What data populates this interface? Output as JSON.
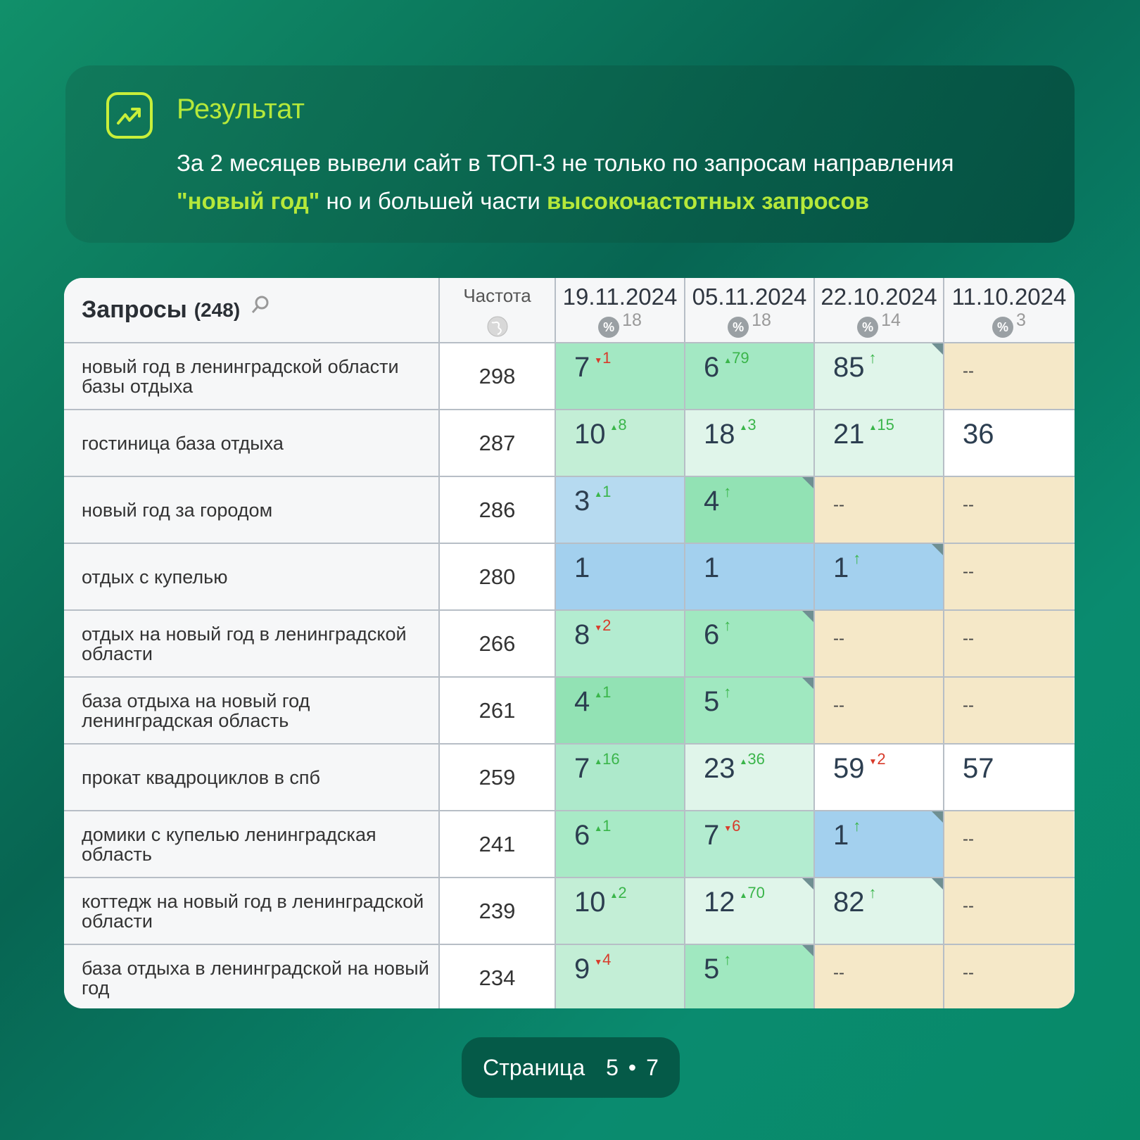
{
  "result": {
    "title": "Результат",
    "line1": "За 2 месяцев вывели сайт в ТОП-3 не только по запросам направления",
    "hl1": "\"новый год\"",
    "mid": " но и большей части ",
    "hl2": "высокочастотных запросов",
    "icon": "trending-up-icon"
  },
  "table": {
    "header": {
      "queries": "Запросы",
      "count": "(248)",
      "frequency": "Частота",
      "dates": [
        {
          "date": "19.11.2024",
          "pct": "%",
          "n": "18"
        },
        {
          "date": "05.11.2024",
          "pct": "%",
          "n": "18"
        },
        {
          "date": "22.10.2024",
          "pct": "%",
          "n": "14"
        },
        {
          "date": "11.10.2024",
          "pct": "%",
          "n": "3"
        }
      ]
    },
    "rows": [
      {
        "q": "новый год в ленинградской области базы отдыха",
        "f": "298",
        "cells": [
          {
            "v": "7",
            "d": "1",
            "t": "down",
            "bg": "#a3e8c3"
          },
          {
            "v": "6",
            "d": "79",
            "t": "up",
            "bg": "#a3e8c3"
          },
          {
            "v": "85",
            "d": "↑",
            "t": "new",
            "bg": "#e0f5ea",
            "corner": true
          },
          {
            "v": "--",
            "bg": "#f5e8c8"
          }
        ]
      },
      {
        "q": "гостиница база отдыха",
        "f": "287",
        "cells": [
          {
            "v": "10",
            "d": "8",
            "t": "up",
            "bg": "#c3eed6"
          },
          {
            "v": "18",
            "d": "3",
            "t": "up",
            "bg": "#e0f5ea"
          },
          {
            "v": "21",
            "d": "15",
            "t": "up",
            "bg": "#e0f5ea"
          },
          {
            "v": "36",
            "bg": "#ffffff"
          }
        ]
      },
      {
        "q": "новый год за городом",
        "f": "286",
        "cells": [
          {
            "v": "3",
            "d": "1",
            "t": "up",
            "bg": "#b6daf0"
          },
          {
            "v": "4",
            "d": "↑",
            "t": "new",
            "bg": "#92e2b4",
            "corner": true
          },
          {
            "v": "--",
            "bg": "#f5e8c8"
          },
          {
            "v": "--",
            "bg": "#f5e8c8"
          }
        ]
      },
      {
        "q": "отдых с купелью",
        "f": "280",
        "cells": [
          {
            "v": "1",
            "bg": "#a3d0ee"
          },
          {
            "v": "1",
            "bg": "#a3d0ee"
          },
          {
            "v": "1",
            "d": "↑",
            "t": "new",
            "bg": "#a3d0ee",
            "corner": true
          },
          {
            "v": "--",
            "bg": "#f5e8c8"
          }
        ]
      },
      {
        "q": "отдых на новый год в ленинградской области",
        "f": "266",
        "cells": [
          {
            "v": "8",
            "d": "2",
            "t": "down",
            "bg": "#b3ecd0"
          },
          {
            "v": "6",
            "d": "↑",
            "t": "new",
            "bg": "#a0e8c0",
            "corner": true
          },
          {
            "v": "--",
            "bg": "#f5e8c8"
          },
          {
            "v": "--",
            "bg": "#f5e8c8"
          }
        ]
      },
      {
        "q": "база отдыха на новый год ленинградская область",
        "f": "261",
        "cells": [
          {
            "v": "4",
            "d": "1",
            "t": "up",
            "bg": "#92e2b4"
          },
          {
            "v": "5",
            "d": "↑",
            "t": "new",
            "bg": "#a0e8c0",
            "corner": true
          },
          {
            "v": "--",
            "bg": "#f5e8c8"
          },
          {
            "v": "--",
            "bg": "#f5e8c8"
          }
        ]
      },
      {
        "q": "прокат квадроциклов в спб",
        "f": "259",
        "cells": [
          {
            "v": "7",
            "d": "16",
            "t": "up",
            "bg": "#ade9cb"
          },
          {
            "v": "23",
            "d": "36",
            "t": "up",
            "bg": "#e0f5ea"
          },
          {
            "v": "59",
            "d": "2",
            "t": "down",
            "bg": "#ffffff"
          },
          {
            "v": "57",
            "bg": "#ffffff"
          }
        ]
      },
      {
        "q": "домики с купелью ленинградская область",
        "f": "241",
        "cells": [
          {
            "v": "6",
            "d": "1",
            "t": "up",
            "bg": "#a8eac6"
          },
          {
            "v": "7",
            "d": "6",
            "t": "down",
            "bg": "#b3ecd0"
          },
          {
            "v": "1",
            "d": "↑",
            "t": "new",
            "bg": "#a3d0ee",
            "corner": true
          },
          {
            "v": "--",
            "bg": "#f5e8c8"
          }
        ]
      },
      {
        "q": "коттедж на новый год в ленинградской области",
        "f": "239",
        "cells": [
          {
            "v": "10",
            "d": "2",
            "t": "up",
            "bg": "#c3eed6"
          },
          {
            "v": "12",
            "d": "70",
            "t": "up",
            "bg": "#e0f5ea",
            "corner": true
          },
          {
            "v": "82",
            "d": "↑",
            "t": "new",
            "bg": "#e0f5ea",
            "corner": true
          },
          {
            "v": "--",
            "bg": "#f5e8c8"
          }
        ]
      },
      {
        "q": "база отдыха в ленинградской на новый год",
        "f": "234",
        "cells": [
          {
            "v": "9",
            "d": "4",
            "t": "down",
            "bg": "#c3eed6"
          },
          {
            "v": "5",
            "d": "↑",
            "t": "new",
            "bg": "#a0e8c0",
            "corner": true
          },
          {
            "v": "--",
            "bg": "#f5e8c8"
          },
          {
            "v": "--",
            "bg": "#f5e8c8"
          }
        ]
      }
    ]
  },
  "pager": {
    "label": "Страница",
    "current": "5",
    "sep": "•",
    "total": "7"
  }
}
